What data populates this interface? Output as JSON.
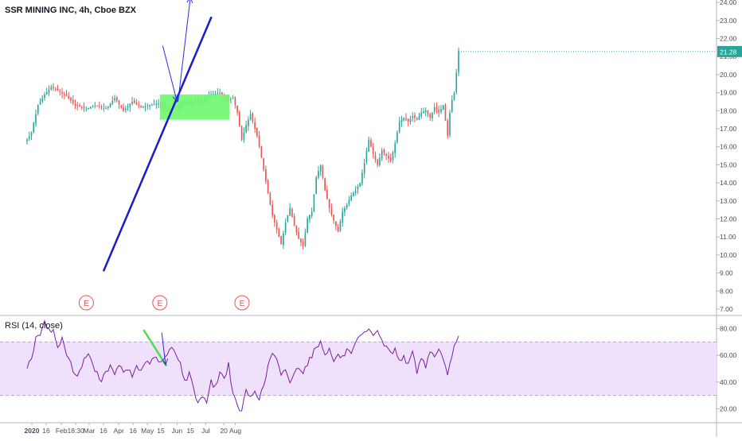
{
  "header": {
    "title": "SSR MINING INC, 4h, Cboe BZX",
    "rsi_label": "RSI (14, close)",
    "last_price": "21.28"
  },
  "colors": {
    "up": "#26a69a",
    "down": "#ef5350",
    "trendline": "#1a1acd",
    "arrow": "#2a2ae8",
    "zone": "#6ef76e",
    "rsi_line": "#7b1fa2",
    "rsi_band": "#efe0fb",
    "rsi_divergence": "#4de04d",
    "price_badge": "#26a69a",
    "earnings": "#ef5350"
  },
  "chart_data": [
    {
      "type": "candlestick",
      "title": "SSR MINING INC, 4h, Cboe BZX",
      "ylim": [
        6.5,
        24.4
      ],
      "y_ticks": [
        "7.00",
        "8.00",
        "9.00",
        "10.00",
        "11.00",
        "12.00",
        "13.00",
        "14.00",
        "15.00",
        "16.00",
        "17.00",
        "18.00",
        "19.00",
        "20.00",
        "21.00",
        "22.00",
        "23.00",
        "24.00"
      ],
      "x_ticks": [
        "2020",
        "16",
        "Feb",
        "18:30",
        "Mar",
        "16",
        "Apr",
        "16",
        "May",
        "15",
        "Jun",
        "15",
        "Jul",
        "20",
        "Aug"
      ],
      "last_price": 21.28,
      "price_anchors": [
        [
          0,
          16.4
        ],
        [
          2,
          16.8
        ],
        [
          5,
          18.3
        ],
        [
          8,
          18.9
        ],
        [
          11,
          19.3
        ],
        [
          14,
          19.1
        ],
        [
          18,
          18.8
        ],
        [
          22,
          18.3
        ],
        [
          27,
          18.1
        ],
        [
          31,
          18.3
        ],
        [
          36,
          18.1
        ],
        [
          40,
          18.7
        ],
        [
          44,
          18.0
        ],
        [
          48,
          18.5
        ],
        [
          52,
          18.2
        ],
        [
          56,
          18.3
        ],
        [
          60,
          18.4
        ],
        [
          64,
          18.0
        ],
        [
          68,
          18.2
        ],
        [
          72,
          18.4
        ],
        [
          76,
          18.5
        ],
        [
          80,
          18.6
        ],
        [
          84,
          18.9
        ],
        [
          88,
          19.0
        ],
        [
          92,
          18.6
        ],
        [
          94,
          18.7
        ],
        [
          96,
          17.9
        ],
        [
          98,
          16.4
        ],
        [
          100,
          17.2
        ],
        [
          102,
          17.8
        ],
        [
          105,
          16.6
        ],
        [
          107,
          15.4
        ],
        [
          110,
          13.4
        ],
        [
          112,
          12.2
        ],
        [
          114,
          11.4
        ],
        [
          116,
          10.6
        ],
        [
          118,
          11.8
        ],
        [
          120,
          12.6
        ],
        [
          122,
          11.6
        ],
        [
          124,
          10.9
        ],
        [
          126,
          10.5
        ],
        [
          128,
          12.0
        ],
        [
          130,
          12.4
        ],
        [
          132,
          14.3
        ],
        [
          134,
          15.0
        ],
        [
          136,
          13.6
        ],
        [
          138,
          12.6
        ],
        [
          140,
          11.9
        ],
        [
          142,
          11.3
        ],
        [
          144,
          12.4
        ],
        [
          146,
          12.8
        ],
        [
          148,
          13.3
        ],
        [
          150,
          13.6
        ],
        [
          152,
          14.0
        ],
        [
          154,
          15.1
        ],
        [
          156,
          16.4
        ],
        [
          158,
          15.6
        ],
        [
          160,
          15.0
        ],
        [
          162,
          15.8
        ],
        [
          164,
          15.5
        ],
        [
          166,
          15.2
        ],
        [
          168,
          16.2
        ],
        [
          170,
          17.4
        ],
        [
          172,
          17.6
        ],
        [
          174,
          17.4
        ],
        [
          176,
          17.7
        ],
        [
          178,
          17.5
        ],
        [
          180,
          17.9
        ],
        [
          182,
          18.0
        ],
        [
          184,
          17.6
        ],
        [
          186,
          18.2
        ],
        [
          188,
          17.9
        ],
        [
          190,
          18.3
        ],
        [
          192,
          16.6
        ],
        [
          193,
          17.9
        ],
        [
          194,
          18.6
        ],
        [
          195,
          19.0
        ],
        [
          196,
          20.1
        ],
        [
          197,
          21.3
        ]
      ],
      "candle_count": 198,
      "first_candle_x_date": "2019-12-27",
      "annotations": {
        "trendline": {
          "from": {
            "date": "2020-03-16",
            "price": 9.1
          },
          "to": {
            "date": "2020-07-07",
            "price": 23.2
          }
        },
        "support_zone": {
          "price_low": 17.5,
          "price_high": 18.9,
          "from": "2020-05-14",
          "to": "2020-07-26"
        },
        "arrows": [
          {
            "from": {
              "date": "2020-05-17",
              "price": 21.6
            },
            "to": {
              "date": "2020-06-01",
              "price": 18.5
            }
          },
          {
            "from": {
              "date": "2020-06-02",
              "price": 18.5
            },
            "to": {
              "date": "2020-06-15",
              "price": 24.3
            }
          }
        ],
        "earnings_markers": [
          "2020-02-27",
          "2020-05-14",
          "2020-08-08"
        ],
        "earnings_label": "E"
      }
    },
    {
      "type": "line",
      "title": "RSI (14, close)",
      "ylim": [
        13,
        87
      ],
      "y_ticks": [
        "20.00",
        "40.00",
        "60.00",
        "80.00"
      ],
      "band": [
        30,
        70
      ],
      "rsi_anchors": [
        [
          0,
          52
        ],
        [
          2,
          58
        ],
        [
          4,
          72
        ],
        [
          6,
          76
        ],
        [
          8,
          84
        ],
        [
          10,
          80
        ],
        [
          12,
          78
        ],
        [
          14,
          66
        ],
        [
          16,
          72
        ],
        [
          18,
          62
        ],
        [
          20,
          54
        ],
        [
          22,
          44
        ],
        [
          24,
          48
        ],
        [
          26,
          56
        ],
        [
          28,
          62
        ],
        [
          30,
          52
        ],
        [
          32,
          46
        ],
        [
          34,
          42
        ],
        [
          36,
          48
        ],
        [
          38,
          52
        ],
        [
          40,
          44
        ],
        [
          42,
          54
        ],
        [
          44,
          46
        ],
        [
          46,
          50
        ],
        [
          48,
          44
        ],
        [
          50,
          52
        ],
        [
          52,
          48
        ],
        [
          54,
          56
        ],
        [
          56,
          52
        ],
        [
          58,
          60
        ],
        [
          60,
          54
        ],
        [
          62,
          56
        ],
        [
          64,
          60
        ],
        [
          66,
          66
        ],
        [
          68,
          62
        ],
        [
          70,
          54
        ],
        [
          72,
          40
        ],
        [
          74,
          46
        ],
        [
          76,
          36
        ],
        [
          78,
          24
        ],
        [
          80,
          30
        ],
        [
          82,
          26
        ],
        [
          84,
          40
        ],
        [
          86,
          36
        ],
        [
          88,
          48
        ],
        [
          90,
          42
        ],
        [
          92,
          54
        ],
        [
          94,
          30
        ],
        [
          96,
          22
        ],
        [
          98,
          18
        ],
        [
          100,
          34
        ],
        [
          102,
          28
        ],
        [
          104,
          34
        ],
        [
          106,
          28
        ],
        [
          108,
          36
        ],
        [
          110,
          52
        ],
        [
          112,
          62
        ],
        [
          114,
          56
        ],
        [
          116,
          44
        ],
        [
          118,
          50
        ],
        [
          120,
          40
        ],
        [
          122,
          46
        ],
        [
          124,
          52
        ],
        [
          126,
          48
        ],
        [
          128,
          54
        ],
        [
          130,
          60
        ],
        [
          132,
          66
        ],
        [
          134,
          70
        ],
        [
          136,
          62
        ],
        [
          138,
          64
        ],
        [
          140,
          56
        ],
        [
          142,
          60
        ],
        [
          144,
          58
        ],
        [
          146,
          64
        ],
        [
          148,
          60
        ],
        [
          150,
          68
        ],
        [
          152,
          74
        ],
        [
          154,
          76
        ],
        [
          156,
          78
        ],
        [
          158,
          76
        ],
        [
          160,
          79
        ],
        [
          162,
          70
        ],
        [
          164,
          66
        ],
        [
          166,
          62
        ],
        [
          168,
          64
        ],
        [
          170,
          56
        ],
        [
          172,
          60
        ],
        [
          174,
          52
        ],
        [
          176,
          62
        ],
        [
          178,
          48
        ],
        [
          180,
          58
        ],
        [
          182,
          52
        ],
        [
          184,
          64
        ],
        [
          186,
          58
        ],
        [
          188,
          66
        ],
        [
          190,
          56
        ],
        [
          192,
          44
        ],
        [
          194,
          60
        ],
        [
          196,
          72
        ],
        [
          197,
          74
        ]
      ],
      "divergence_line": {
        "from": {
          "date": "2020-04-27",
          "value": 79
        },
        "to": {
          "date": "2020-05-21",
          "value": 52
        }
      },
      "rsi_arrow": {
        "from": {
          "date": "2020-05-16",
          "value": 77
        },
        "to": {
          "date": "2020-05-20",
          "value": 53
        }
      }
    }
  ]
}
